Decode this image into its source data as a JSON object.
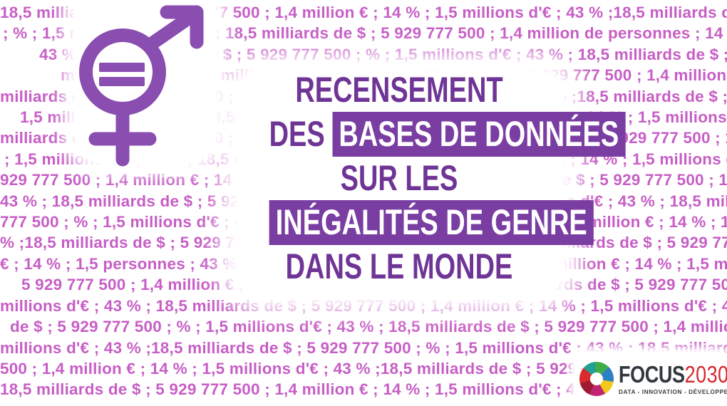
{
  "colors": {
    "background_pattern_text": "#c75ec6",
    "symbol_purple": "#8a4db0",
    "title_purple": "#6f3596",
    "highlight_background": "#7a3da2",
    "highlight_text": "#ffffff",
    "logo_dark": "#32383e",
    "logo_red": "#d7282e",
    "logo_wheel": [
      "#21a093",
      "#41ad49",
      "#2e7fc4",
      "#f3c81c",
      "#c12572",
      "#9e1b32",
      "#d92b2c"
    ]
  },
  "icons": {
    "gender_equality": "gender-equality-icon",
    "logo_wheel": "aperture-pinwheel-icon"
  },
  "title": {
    "line1": "RECENSEMENT",
    "line2_prefix": "DES",
    "line2_highlight": "BASES DE DONNÉES",
    "line3": "SUR LES",
    "line4_highlight": "INÉGALITÉS DE GENRE",
    "line5": "DANS LE MONDE"
  },
  "logo": {
    "word1": "FOCUS",
    "word2": "2030",
    "tagline": "DATA - INNOVATION - DÉVELOPPEMENT"
  },
  "background_pattern": {
    "lines": [
      "18,5 milliards de $ ; 5 929 777 500 ; 1,4 million € ; 14 % ; 1,5 millions d'€ ; 43 % ;18,5 milliards de $ ; 5 929 777 500 ; 1,4",
      ";  % ; 1,5 millions d'€ ; 43 % ; 18,5 milliards de $ ; 5 929 777 500 ; 1,4 million de personnes ; 14 % ; 1,5 millions d'€ ;",
      "43 % ; 18,5 milliards de $ ; 5 929 777 500 ;  % ; 1,5 millions d'€ ; 43 % ; 18,5 milliards de $ ; 5 929 777 500 ; 1,4",
      "million € ; 14 % ; 1,5 millions d'€ ; 43 % ;18,5 milliards de $ ; 5 929 777 500 ; 1,4 million € ; 14 % ; 43 % ; 18,5",
      "milliards de $ ; 5 929 777 500 ; 1,4 million € ; 14 % ; 1,5 millions d'€ ; 43 % ;18,5 milliards de $ ; 5 929 777 500 ;  % ;",
      "1,5 millions d'€ ; 43 % ; 18,5 milliards de $ ; 5 929 777 500 ; 1,4 million € ; 14 % ; 1,5 millions d'€ ; 43 % ;18,5",
      "milliards de $ ; 5 929 777 500 ;  % ; 1,5 millions d'€ ; 43 % ; 18,5 milliards de $ ; 5 929 777 500 ; 1,4 million € ; 14 %",
      "; 1,5 millions d'€ ; 43 % ; 18,5 milliards de $ ; 5 929 777 500 ; 1,4 million € ; 14 % ; 1,5 millions d'€ ; 43 % ; 18,5 milliards de $ ; 5",
      "929 777 500 ; 1,4 million € ; 14 % ; 1,5 millions d'€ ; 43 % ;18,5 milliards de $ ; 5 929 777 500 ; 1,5 millions d'€ ;",
      "43 % ; 18,5 milliards de $ ; 5 929 777 500 ; 1,4 million € ; 14 % ; 1,5 millions d'€ ; 43 % ; 18,5 milliards de $ ; 5 929",
      "777 500 ;  % ; 1,5 millions d'€ ; 43 % ; 18,5 milliards de $ ; 5 929 777 500 ; 1,4 million € ; 14 % ; 1,5 millions d'€ ; 43",
      "% ;18,5 milliards de $ ; 5 929 777 500 ;  % ; 1,5 millions d'€ ; 43 % ; 18,5 milliards de $ ; 5 929 777 500 ; 1,4 million",
      "€ ; 14 % ; 1,5 personnes ; 43 % ; 18,5 milliards de $ ; 5 929 777 500 ; 1,4 million € ; 14 % ; 1,5 millions d'€ ; 43 % ; 18,5 milliards de $ ;",
      "5 929 777 500 ; 1,4 million € ; 14 % ; 1,5 millions d'€ ; 43 % ;18,5 milliards de $ ; 5 929 777 500 ;  % ; 1,5",
      "millions d'€ ; 43 % ; 18,5 milliards de $ ; 5 929 777 500 ; 1,4 million € ; 14 % ; 1,5 millions d'€ ; 43 % ;18,5 milliards",
      "de $ ; 5 929 777 500 ;  % ; 1,5 millions d'€ ; 43 % ; 18,5 milliards de $ ; 5 929 777 500 ; 1,4 million € ; 14 % ; 1,5",
      "millions d'€ ; 43 % ;18,5 milliards de $ ; 5 929 777 500 ;  % ; 1,5 millions d'€ ; 43 % ; 18,5 milliards de $ ; 5 929 777",
      "500 ; 1,4 million € ; 14 % ; 1,5 millions d'€ ; 43 % ;18,5 milliards de $ ; 5 929 777 500 ;  % ; 1,5 millions d'€",
      "18,5 milliards de $ ; 5 929 777 500 ; 1,4 million € ; 14 % ; 1,5 millions d'€ ; 43 % ;18,5 milliards de $"
    ]
  }
}
